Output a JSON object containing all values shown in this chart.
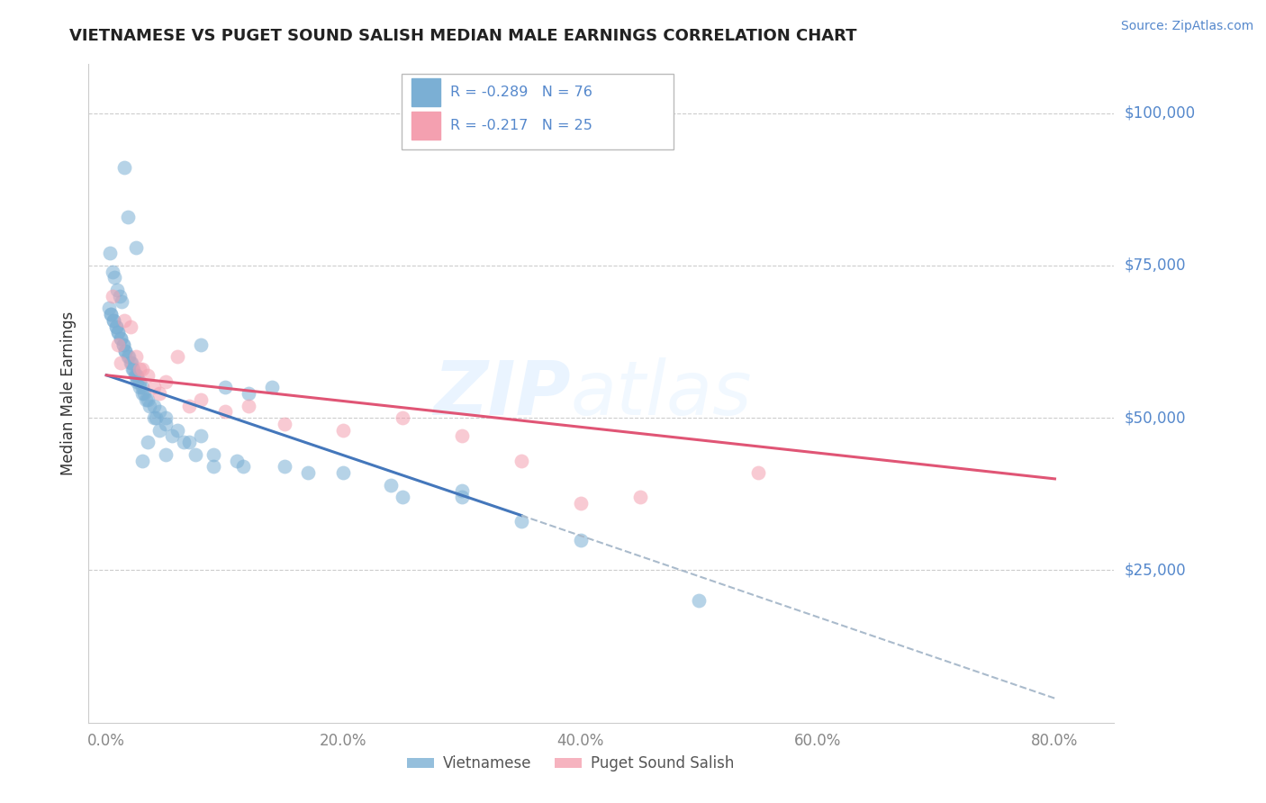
{
  "title": "VIETNAMESE VS PUGET SOUND SALISH MEDIAN MALE EARNINGS CORRELATION CHART",
  "source": "Source: ZipAtlas.com",
  "xlabel_ticks": [
    "0.0%",
    "20.0%",
    "40.0%",
    "60.0%",
    "80.0%"
  ],
  "xlabel_vals": [
    0,
    20,
    40,
    60,
    80
  ],
  "ylabel_ticks": [
    "$25,000",
    "$50,000",
    "$75,000",
    "$100,000"
  ],
  "ylabel_vals": [
    25000,
    50000,
    75000,
    100000
  ],
  "ylim": [
    0,
    108000
  ],
  "xlim": [
    -1.5,
    85
  ],
  "legend_label1": "Vietnamese",
  "legend_label2": "Puget Sound Salish",
  "r1": "-0.289",
  "n1": "76",
  "r2": "-0.217",
  "n2": "25",
  "color_blue": "#7BAFD4",
  "color_pink": "#F4A0B0",
  "color_blue_line": "#4477BB",
  "color_pink_line": "#E05575",
  "color_dashed": "#AABBCC",
  "watermark_zip": "ZIP",
  "watermark_atlas": "atlas",
  "viet_line_x0": 0,
  "viet_line_y0": 57000,
  "viet_line_x1": 35,
  "viet_line_y1": 34000,
  "viet_dash_x0": 35,
  "viet_dash_y0": 34000,
  "viet_dash_x1": 80,
  "viet_dash_y1": 4000,
  "salish_line_x0": 0,
  "salish_line_y0": 57000,
  "salish_line_x1": 80,
  "salish_line_y1": 40000,
  "vietnamese_x": [
    1.5,
    1.8,
    2.5,
    0.3,
    0.5,
    0.7,
    0.9,
    1.1,
    1.3,
    0.4,
    0.6,
    0.8,
    1.0,
    1.2,
    1.4,
    1.6,
    1.9,
    2.1,
    2.3,
    2.6,
    2.8,
    3.0,
    3.2,
    3.5,
    4.0,
    4.5,
    5.0,
    6.0,
    7.0,
    8.0,
    10.0,
    12.0,
    14.0,
    0.2,
    0.4,
    0.6,
    0.8,
    1.0,
    1.2,
    1.4,
    1.6,
    1.8,
    2.0,
    2.2,
    2.4,
    2.6,
    2.8,
    3.0,
    3.3,
    3.6,
    4.2,
    5.5,
    7.5,
    9.0,
    11.0,
    15.0,
    20.0,
    25.0,
    30.0,
    8.0,
    4.0,
    4.5,
    5.0,
    3.5,
    2.5,
    3.0,
    5.0,
    6.5,
    9.0,
    11.5,
    17.0,
    24.0,
    30.0,
    35.0,
    40.0,
    50.0
  ],
  "vietnamese_y": [
    91000,
    83000,
    78000,
    77000,
    74000,
    73000,
    71000,
    70000,
    69000,
    67000,
    66000,
    65000,
    64000,
    63000,
    62000,
    61000,
    60000,
    59000,
    58000,
    57000,
    56000,
    55000,
    54000,
    53000,
    52000,
    51000,
    50000,
    48000,
    46000,
    62000,
    55000,
    54000,
    55000,
    68000,
    67000,
    66000,
    65000,
    64000,
    63000,
    62000,
    61000,
    60000,
    59000,
    58000,
    57000,
    56000,
    55000,
    54000,
    53000,
    52000,
    50000,
    47000,
    44000,
    42000,
    43000,
    42000,
    41000,
    37000,
    38000,
    47000,
    50000,
    48000,
    49000,
    46000,
    57000,
    43000,
    44000,
    46000,
    44000,
    42000,
    41000,
    39000,
    37000,
    33000,
    30000,
    20000
  ],
  "salish_x": [
    0.5,
    1.0,
    1.5,
    2.0,
    2.5,
    3.0,
    3.5,
    4.0,
    4.5,
    5.0,
    6.0,
    7.0,
    8.0,
    10.0,
    12.0,
    15.0,
    20.0,
    25.0,
    30.0,
    35.0,
    40.0,
    45.0,
    55.0,
    1.2,
    2.8
  ],
  "salish_y": [
    70000,
    62000,
    66000,
    65000,
    60000,
    58000,
    57000,
    55000,
    54000,
    56000,
    60000,
    52000,
    53000,
    51000,
    52000,
    49000,
    48000,
    50000,
    47000,
    43000,
    36000,
    37000,
    41000,
    59000,
    58000
  ]
}
